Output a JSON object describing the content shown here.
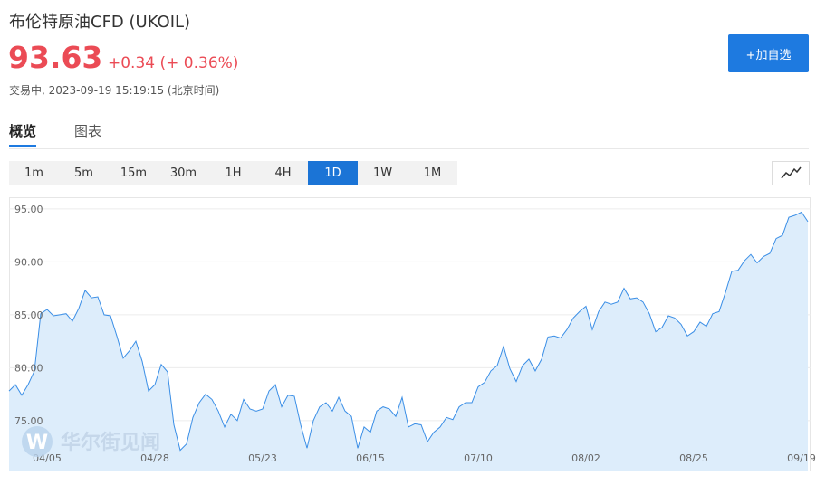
{
  "header": {
    "title": "布伦特原油CFD  (UKOIL)",
    "price": "93.63",
    "change": "+0.34 (+ 0.36%)",
    "status": "交易中, 2023-09-19 15:19:15 (北京时间)",
    "button": "+加自选"
  },
  "tabs": [
    {
      "label": "概览",
      "selected": true
    },
    {
      "label": "图表",
      "selected": false
    }
  ],
  "intervals": [
    {
      "label": "1m",
      "selected": false
    },
    {
      "label": "5m",
      "selected": false
    },
    {
      "label": "15m",
      "selected": false
    },
    {
      "label": "30m",
      "selected": false
    },
    {
      "label": "1H",
      "selected": false
    },
    {
      "label": "4H",
      "selected": false
    },
    {
      "label": "1D",
      "selected": true
    },
    {
      "label": "1W",
      "selected": false
    },
    {
      "label": "1M",
      "selected": false
    }
  ],
  "watermark": "华尔街见闻",
  "chart_data": {
    "type": "area",
    "categories": [
      null,
      null,
      null,
      null,
      null,
      null,
      "04/05",
      null,
      null,
      null,
      null,
      null,
      null,
      null,
      null,
      null,
      null,
      null,
      null,
      null,
      null,
      null,
      null,
      "04/28",
      null,
      null,
      null,
      null,
      null,
      null,
      null,
      null,
      null,
      null,
      null,
      null,
      null,
      null,
      null,
      null,
      "05/23",
      null,
      null,
      null,
      null,
      null,
      null,
      null,
      null,
      null,
      null,
      null,
      null,
      null,
      null,
      null,
      null,
      "06/15",
      null,
      null,
      null,
      null,
      null,
      null,
      null,
      null,
      null,
      null,
      null,
      null,
      null,
      null,
      null,
      null,
      "07/10",
      null,
      null,
      null,
      null,
      null,
      null,
      null,
      null,
      null,
      null,
      null,
      null,
      null,
      null,
      null,
      null,
      "08/02",
      null,
      null,
      null,
      null,
      null,
      null,
      null,
      null,
      null,
      null,
      null,
      null,
      null,
      null,
      null,
      null,
      "08/25",
      null,
      null,
      null,
      null,
      null,
      null,
      null,
      null,
      null,
      null,
      null,
      null,
      null,
      null,
      null,
      null,
      "09/19",
      null
    ],
    "values": [
      77.8,
      78.4,
      77.4,
      78.4,
      79.7,
      85.1,
      85.5,
      84.9,
      85.0,
      85.1,
      84.4,
      85.6,
      87.3,
      86.6,
      86.7,
      85.0,
      84.9,
      83.0,
      80.9,
      81.6,
      82.5,
      80.6,
      77.8,
      78.4,
      80.3,
      79.6,
      74.6,
      72.2,
      72.8,
      75.3,
      76.7,
      77.5,
      77.0,
      75.9,
      74.4,
      75.6,
      75.0,
      77.0,
      76.1,
      75.9,
      76.1,
      77.8,
      78.4,
      76.3,
      77.4,
      77.3,
      74.6,
      72.4,
      75.0,
      76.3,
      76.7,
      75.9,
      77.2,
      75.9,
      75.4,
      72.4,
      74.4,
      73.9,
      75.9,
      76.3,
      76.1,
      75.4,
      77.2,
      74.4,
      74.7,
      74.6,
      73.0,
      73.9,
      74.4,
      75.3,
      75.1,
      76.3,
      76.7,
      76.7,
      78.2,
      78.6,
      79.7,
      80.2,
      82.0,
      79.9,
      78.7,
      80.2,
      80.8,
      79.7,
      80.8,
      82.9,
      83.0,
      82.8,
      83.6,
      84.7,
      85.3,
      85.8,
      83.6,
      85.3,
      86.2,
      86.0,
      86.2,
      87.5,
      86.5,
      86.6,
      86.2,
      85.1,
      83.4,
      83.8,
      84.9,
      84.7,
      84.1,
      83.0,
      83.4,
      84.3,
      83.9,
      85.1,
      85.3,
      87.1,
      89.1,
      89.2,
      90.1,
      90.7,
      89.9,
      90.5,
      90.8,
      92.2,
      92.5,
      94.2,
      94.4,
      94.7,
      93.8
    ],
    "color": "#3a8ee6",
    "fill": "#ddedfb",
    "ylim": [
      70.2,
      96.1
    ],
    "yticks": [
      {
        "value": 75,
        "label": "75.00"
      },
      {
        "value": 80,
        "label": "80.00"
      },
      {
        "value": 85,
        "label": "85.00"
      },
      {
        "value": 90,
        "label": "90.00"
      },
      {
        "value": 95,
        "label": "95.00"
      }
    ],
    "grid": true
  }
}
